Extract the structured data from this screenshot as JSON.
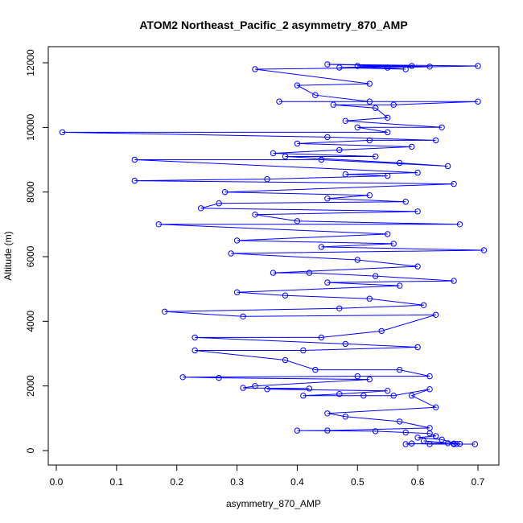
{
  "chart_data": {
    "type": "line",
    "title": "ATOM2 Northeast_Pacific_2 asymmetry_870_AMP",
    "xlabel": "asymmetry_870_AMP",
    "ylabel": "Altitude (m)",
    "xlim": [
      0.0,
      0.7
    ],
    "ylim": [
      0,
      12000
    ],
    "x_ticks": [
      "0.0",
      "0.1",
      "0.2",
      "0.3",
      "0.4",
      "0.5",
      "0.6",
      "0.7"
    ],
    "y_ticks": [
      "0",
      "2000",
      "4000",
      "6000",
      "8000",
      "10000",
      "12000"
    ],
    "grid": false,
    "legend": "none",
    "marker": "open-circle",
    "color": "#0000ff",
    "series": [
      {
        "points": [
          [
            0.66,
            200
          ],
          [
            0.695,
            200
          ],
          [
            0.62,
            200
          ],
          [
            0.59,
            220
          ],
          [
            0.58,
            200
          ],
          [
            0.65,
            230
          ],
          [
            0.61,
            300
          ],
          [
            0.66,
            220
          ],
          [
            0.67,
            210
          ],
          [
            0.665,
            205
          ],
          [
            0.64,
            340
          ],
          [
            0.6,
            400
          ],
          [
            0.63,
            450
          ],
          [
            0.62,
            530
          ],
          [
            0.58,
            560
          ],
          [
            0.53,
            600
          ],
          [
            0.4,
            620
          ],
          [
            0.45,
            620
          ],
          [
            0.62,
            700
          ],
          [
            0.57,
            900
          ],
          [
            0.48,
            1050
          ],
          [
            0.45,
            1150
          ],
          [
            0.63,
            1340
          ],
          [
            0.59,
            1700
          ],
          [
            0.62,
            1900
          ],
          [
            0.56,
            1700
          ],
          [
            0.51,
            1700
          ],
          [
            0.41,
            1700
          ],
          [
            0.47,
            1750
          ],
          [
            0.55,
            1850
          ],
          [
            0.35,
            1900
          ],
          [
            0.42,
            1920
          ],
          [
            0.31,
            1940
          ],
          [
            0.33,
            2000
          ],
          [
            0.52,
            2200
          ],
          [
            0.27,
            2250
          ],
          [
            0.21,
            2270
          ],
          [
            0.5,
            2300
          ],
          [
            0.62,
            2300
          ],
          [
            0.57,
            2500
          ],
          [
            0.43,
            2500
          ],
          [
            0.38,
            2800
          ],
          [
            0.23,
            3100
          ],
          [
            0.41,
            3100
          ],
          [
            0.6,
            3200
          ],
          [
            0.48,
            3300
          ],
          [
            0.23,
            3500
          ],
          [
            0.44,
            3500
          ],
          [
            0.54,
            3700
          ],
          [
            0.63,
            4200
          ],
          [
            0.31,
            4150
          ],
          [
            0.18,
            4300
          ],
          [
            0.47,
            4400
          ],
          [
            0.61,
            4500
          ],
          [
            0.52,
            4700
          ],
          [
            0.38,
            4800
          ],
          [
            0.3,
            4900
          ],
          [
            0.57,
            5100
          ],
          [
            0.45,
            5200
          ],
          [
            0.66,
            5250
          ],
          [
            0.53,
            5400
          ],
          [
            0.42,
            5500
          ],
          [
            0.36,
            5500
          ],
          [
            0.6,
            5700
          ],
          [
            0.5,
            5900
          ],
          [
            0.29,
            6100
          ],
          [
            0.71,
            6200
          ],
          [
            0.44,
            6300
          ],
          [
            0.56,
            6400
          ],
          [
            0.3,
            6500
          ],
          [
            0.55,
            6700
          ],
          [
            0.17,
            7000
          ],
          [
            0.67,
            7000
          ],
          [
            0.4,
            7100
          ],
          [
            0.33,
            7300
          ],
          [
            0.6,
            7400
          ],
          [
            0.24,
            7500
          ],
          [
            0.27,
            7650
          ],
          [
            0.58,
            7700
          ],
          [
            0.45,
            7800
          ],
          [
            0.52,
            7900
          ],
          [
            0.28,
            8000
          ],
          [
            0.66,
            8250
          ],
          [
            0.13,
            8350
          ],
          [
            0.35,
            8400
          ],
          [
            0.55,
            8500
          ],
          [
            0.48,
            8550
          ],
          [
            0.6,
            8600
          ],
          [
            0.13,
            9000
          ],
          [
            0.44,
            9000
          ],
          [
            0.65,
            8800
          ],
          [
            0.57,
            8900
          ],
          [
            0.38,
            9100
          ],
          [
            0.53,
            9100
          ],
          [
            0.36,
            9200
          ],
          [
            0.47,
            9300
          ],
          [
            0.59,
            9400
          ],
          [
            0.4,
            9500
          ],
          [
            0.52,
            9600
          ],
          [
            0.63,
            9600
          ],
          [
            0.45,
            9700
          ],
          [
            0.01,
            9850
          ],
          [
            0.55,
            9850
          ],
          [
            0.5,
            10000
          ],
          [
            0.64,
            10000
          ],
          [
            0.48,
            10200
          ],
          [
            0.55,
            10300
          ],
          [
            0.53,
            10600
          ],
          [
            0.46,
            10700
          ],
          [
            0.56,
            10700
          ],
          [
            0.7,
            10800
          ],
          [
            0.37,
            10800
          ],
          [
            0.52,
            10800
          ],
          [
            0.43,
            11000
          ],
          [
            0.4,
            11300
          ],
          [
            0.52,
            11350
          ],
          [
            0.33,
            11800
          ],
          [
            0.55,
            11850
          ],
          [
            0.7,
            11900
          ],
          [
            0.45,
            11950
          ],
          [
            0.62,
            11880
          ],
          [
            0.5,
            11900
          ],
          [
            0.58,
            11800
          ],
          [
            0.47,
            11850
          ],
          [
            0.59,
            11900
          ]
        ]
      }
    ]
  }
}
